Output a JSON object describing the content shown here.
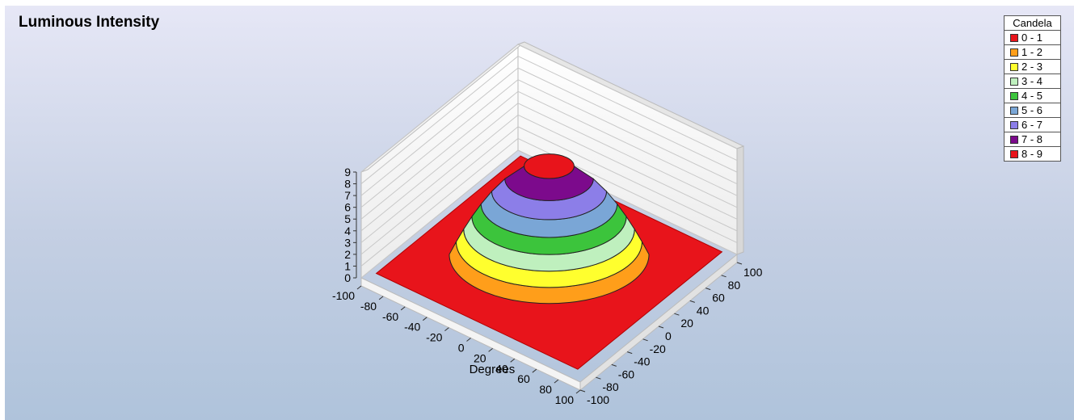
{
  "chart_data": {
    "type": "surface",
    "title": "Luminous Intensity",
    "xlabel": "Degrees",
    "ylabel": "",
    "zlabel": "",
    "x_range": [
      -100,
      100
    ],
    "y_range": [
      -100,
      100
    ],
    "z_range": [
      0,
      9
    ],
    "x_ticks": [
      "-100",
      "-80",
      "-60",
      "-40",
      "-20",
      "0",
      "20",
      "40",
      "60",
      "80",
      "100"
    ],
    "y_ticks": [
      "-100",
      "-80",
      "-60",
      "-40",
      "-20",
      "0",
      "20",
      "40",
      "60",
      "80",
      "100"
    ],
    "z_ticks": [
      "0",
      "1",
      "2",
      "3",
      "4",
      "5",
      "6",
      "7",
      "8",
      "9"
    ],
    "peak_value": 9,
    "grid": true,
    "legend": {
      "title": "Candela",
      "placement": "top-right",
      "items": [
        {
          "label": "0 - 1",
          "color": "#e8141b"
        },
        {
          "label": "1 - 2",
          "color": "#ff9e1a"
        },
        {
          "label": "2 - 3",
          "color": "#ffff2e"
        },
        {
          "label": "3 - 4",
          "color": "#bff0be"
        },
        {
          "label": "4 - 5",
          "color": "#3cc43c"
        },
        {
          "label": "5 - 6",
          "color": "#7aa6d6"
        },
        {
          "label": "6 - 7",
          "color": "#8c7ee8"
        },
        {
          "label": "7 - 8",
          "color": "#7c0a8c"
        },
        {
          "label": "8 - 9",
          "color": "#e8141b"
        }
      ]
    }
  }
}
